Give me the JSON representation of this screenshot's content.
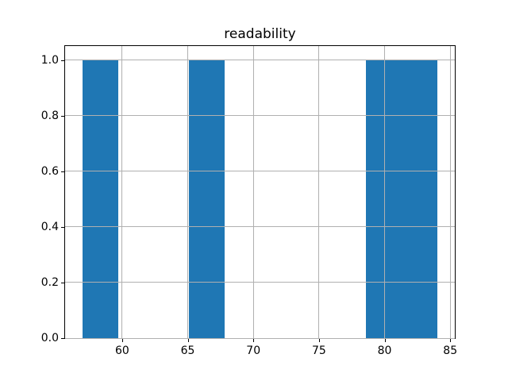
{
  "chart_data": {
    "type": "bar",
    "chart_style": "histogram",
    "title": "readability",
    "xlabel": "",
    "ylabel": "",
    "bin_edges": [
      57.0,
      59.7,
      62.4,
      65.1,
      67.8,
      70.5,
      73.2,
      75.9,
      78.6,
      81.3,
      84.0
    ],
    "counts": [
      1,
      0,
      0,
      1,
      0,
      0,
      0,
      0,
      1,
      1
    ],
    "xlim": [
      55.65,
      85.35
    ],
    "ylim": [
      0,
      1.05
    ],
    "xticks": [
      60,
      65,
      70,
      75,
      80,
      85
    ],
    "xtick_labels": [
      "60",
      "65",
      "70",
      "75",
      "80",
      "85"
    ],
    "yticks": [
      0.0,
      0.2,
      0.4,
      0.6,
      0.8,
      1.0
    ],
    "ytick_labels": [
      "0.0",
      "0.2",
      "0.4",
      "0.6",
      "0.8",
      "1.0"
    ],
    "grid": true,
    "grid_above_bars": true,
    "legend_position": "none",
    "colors": {
      "bar": "#1f77b4",
      "grid": "#b0b0b0",
      "spine": "#000000",
      "background": "#ffffff",
      "text": "#000000"
    }
  }
}
